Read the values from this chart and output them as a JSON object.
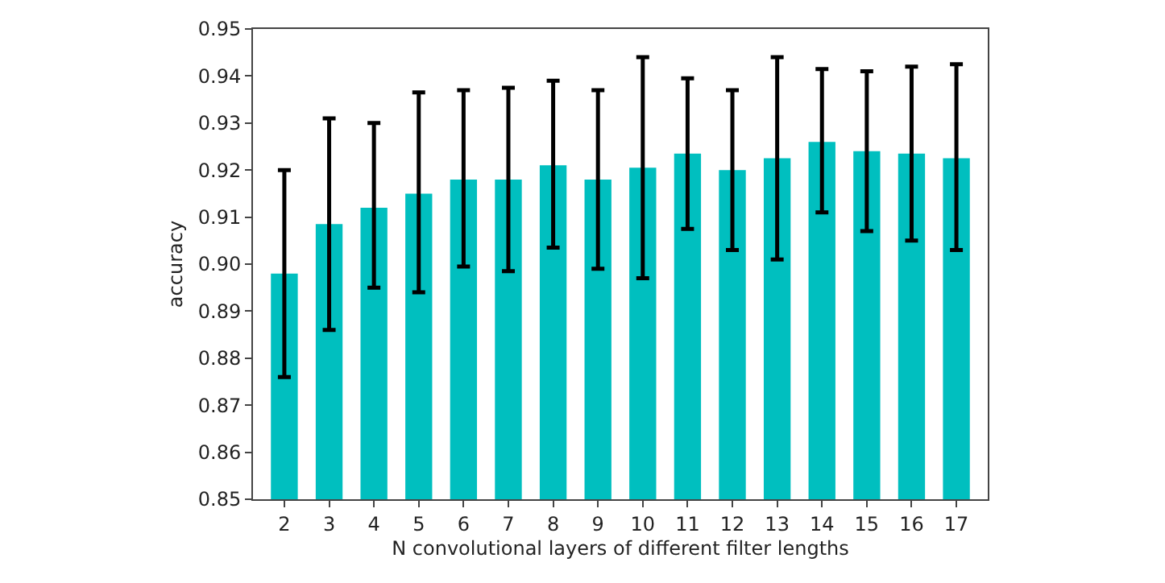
{
  "chart_data": {
    "type": "bar",
    "xlabel": "N convolutional layers of different filter lengths",
    "ylabel": "accuracy",
    "categories": [
      "2",
      "3",
      "4",
      "5",
      "6",
      "7",
      "8",
      "9",
      "10",
      "11",
      "12",
      "13",
      "14",
      "15",
      "16",
      "17"
    ],
    "values": [
      0.898,
      0.9085,
      0.912,
      0.915,
      0.918,
      0.918,
      0.921,
      0.918,
      0.9205,
      0.9235,
      0.92,
      0.9225,
      0.926,
      0.924,
      0.9235,
      0.9225
    ],
    "errors": [
      [
        0.876,
        0.92
      ],
      [
        0.886,
        0.931
      ],
      [
        0.895,
        0.93
      ],
      [
        0.894,
        0.9365
      ],
      [
        0.8995,
        0.937
      ],
      [
        0.8985,
        0.9375
      ],
      [
        0.9035,
        0.939
      ],
      [
        0.899,
        0.937
      ],
      [
        0.897,
        0.944
      ],
      [
        0.9075,
        0.9395
      ],
      [
        0.903,
        0.937
      ],
      [
        0.901,
        0.944
      ],
      [
        0.911,
        0.9415
      ],
      [
        0.907,
        0.941
      ],
      [
        0.905,
        0.942
      ],
      [
        0.903,
        0.9425
      ]
    ],
    "color": "#00bfbf",
    "ylim": [
      0.85,
      0.95
    ],
    "yticks": [
      {
        "value": 0.85,
        "label": "0.85"
      },
      {
        "value": 0.86,
        "label": "0.86"
      },
      {
        "value": 0.87,
        "label": "0.87"
      },
      {
        "value": 0.88,
        "label": "0.88"
      },
      {
        "value": 0.89,
        "label": "0.89"
      },
      {
        "value": 0.9,
        "label": "0.90"
      },
      {
        "value": 0.91,
        "label": "0.91"
      },
      {
        "value": 0.92,
        "label": "0.92"
      },
      {
        "value": 0.93,
        "label": "0.93"
      },
      {
        "value": 0.94,
        "label": "0.94"
      },
      {
        "value": 0.95,
        "label": "0.95"
      }
    ],
    "grid": false,
    "legend": false
  }
}
